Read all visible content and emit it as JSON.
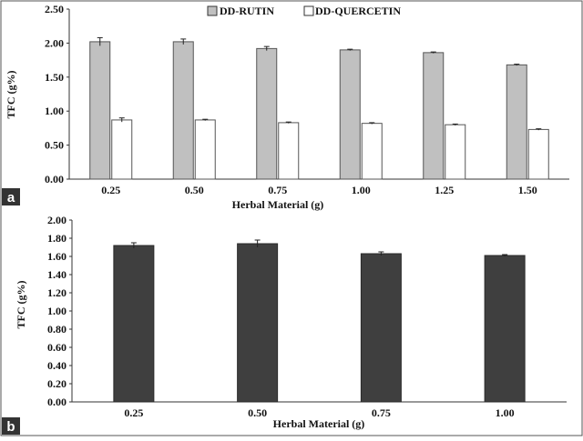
{
  "colors": {
    "rutin": "#c0c0c0",
    "quercetin": "#ffffff",
    "panel_b_bar": "#3f3f3f",
    "frame": "#555555",
    "panel_label_bg": "#333333"
  },
  "chart_data": [
    {
      "panel": "a",
      "type": "bar",
      "xlabel": "Herbal Material (g)",
      "ylabel": "TFC (g%)",
      "categories": [
        "0.25",
        "0.50",
        "0.75",
        "1.00",
        "1.25",
        "1.50"
      ],
      "yticks": [
        "0.00",
        "0.50",
        "1.00",
        "1.50",
        "2.00",
        "2.50"
      ],
      "ylim": [
        0,
        2.5
      ],
      "grid": false,
      "legend_position": "top",
      "series": [
        {
          "name": "DD-RUTIN",
          "color": "#c0c0c0",
          "values": [
            2.02,
            2.02,
            1.92,
            1.9,
            1.86,
            1.68
          ],
          "errors": [
            0.06,
            0.04,
            0.03,
            0.01,
            0.01,
            0.01
          ]
        },
        {
          "name": "DD-QUERCETIN",
          "color": "#ffffff",
          "values": [
            0.87,
            0.87,
            0.83,
            0.82,
            0.8,
            0.73
          ],
          "errors": [
            0.03,
            0.01,
            0.01,
            0.01,
            0.01,
            0.01
          ]
        }
      ]
    },
    {
      "panel": "b",
      "type": "bar",
      "xlabel": "Herbal Material (g)",
      "ylabel": "TFC (g%)",
      "categories": [
        "0.25",
        "0.50",
        "0.75",
        "1.00"
      ],
      "yticks": [
        "0.00",
        "0.20",
        "0.40",
        "0.60",
        "0.80",
        "1.00",
        "1.20",
        "1.40",
        "1.60",
        "1.80",
        "2.00"
      ],
      "ylim": [
        0,
        2.0
      ],
      "grid": false,
      "series": [
        {
          "color": "#3f3f3f",
          "values": [
            1.72,
            1.74,
            1.63,
            1.61
          ],
          "errors": [
            0.03,
            0.04,
            0.02,
            0.01
          ]
        }
      ]
    }
  ]
}
